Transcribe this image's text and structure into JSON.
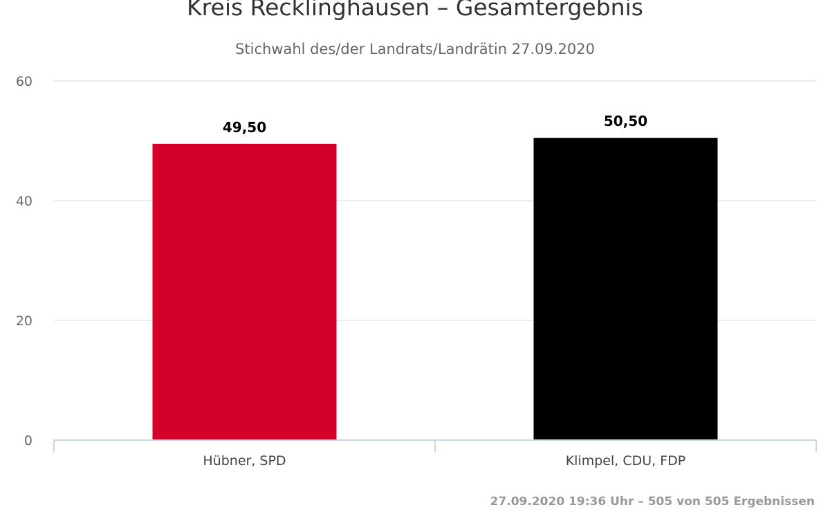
{
  "chart_data": {
    "type": "bar",
    "title": "Kreis Recklinghausen – Gesamtergebnis",
    "subtitle": "Stichwahl des/der Landrats/Landrätin 27.09.2020",
    "categories": [
      "Hübner, SPD",
      "Klimpel, CDU, FDP"
    ],
    "values": [
      49.5,
      50.5
    ],
    "data_labels": [
      "49,50",
      "50,50"
    ],
    "colors": [
      "#d50029",
      "#000000"
    ],
    "xlabel": "",
    "ylabel": "",
    "ylim": [
      0,
      60
    ],
    "yticks": [
      0,
      20,
      40,
      60
    ],
    "ytick_labels": [
      "0",
      "20",
      "40",
      "60"
    ],
    "grid": true,
    "legend": "none"
  },
  "credits": "27.09.2020 19:36 Uhr – 505 von 505 Ergebnissen"
}
